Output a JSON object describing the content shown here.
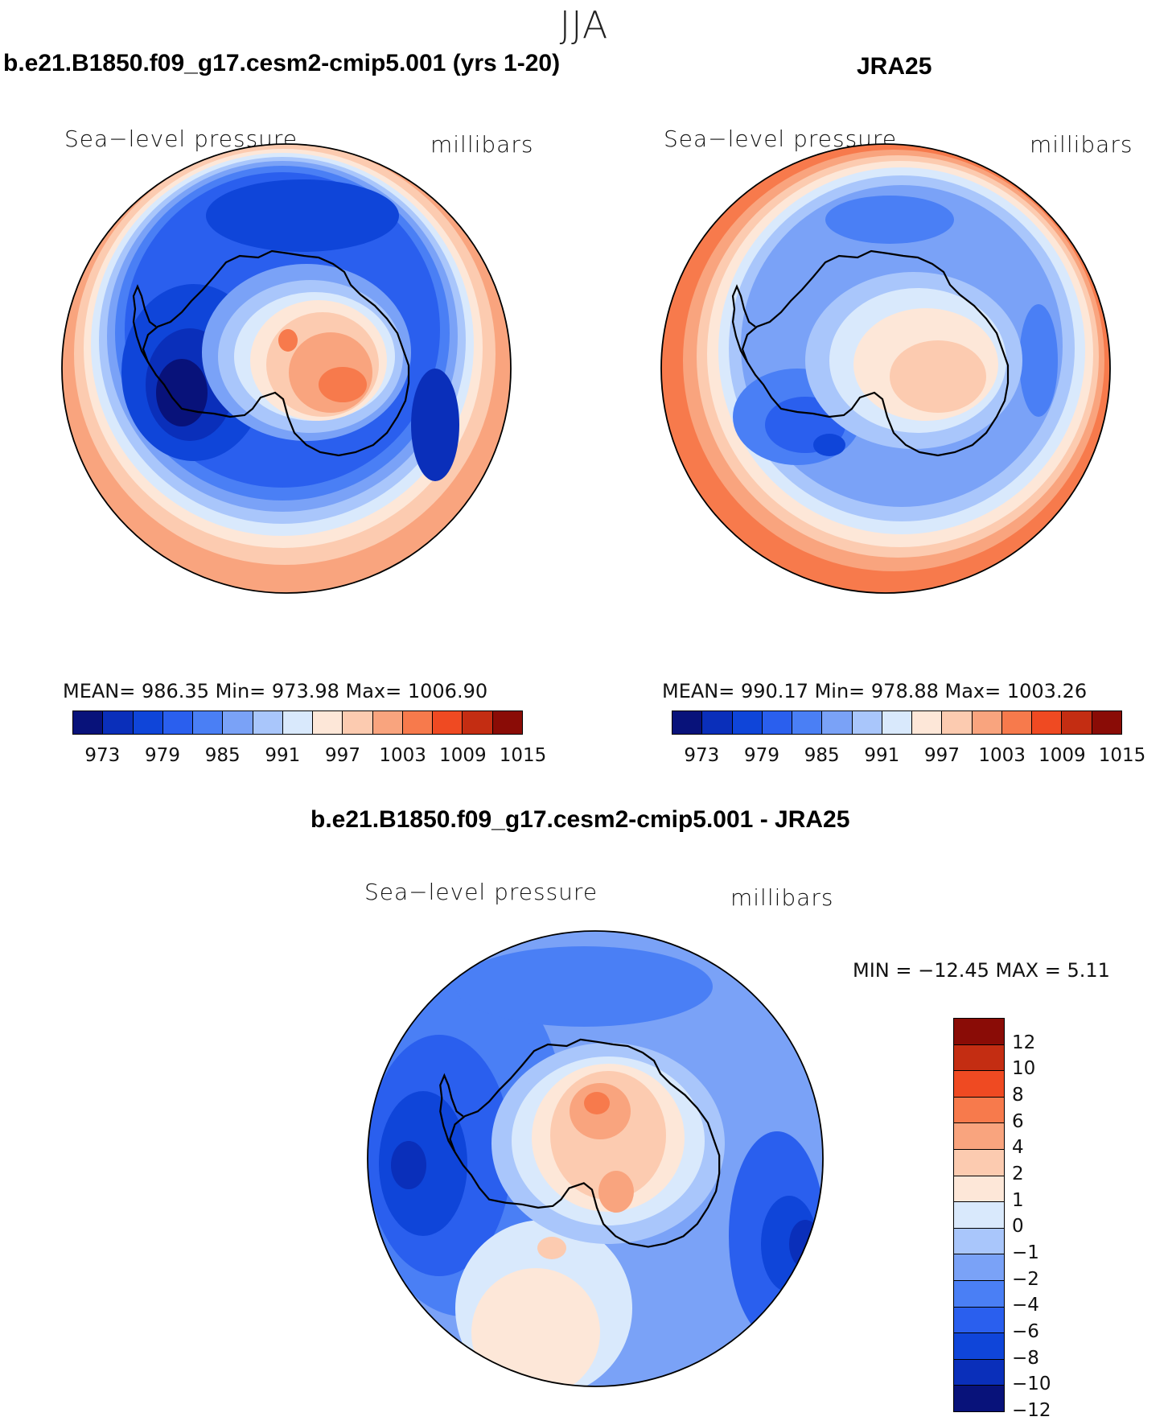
{
  "season": "JJA",
  "colors": {
    "abs_scale": [
      "#08127a",
      "#0a2fba",
      "#0f45d9",
      "#2a5fee",
      "#4a7ff5",
      "#7aa2f7",
      "#a9c6fb",
      "#d9e9fc",
      "#fde7d8",
      "#fccbb0",
      "#f9a47e",
      "#f77a4c",
      "#ef4a22",
      "#c42d12",
      "#8a0c06"
    ],
    "diff_scale": [
      "#08127a",
      "#0a2fba",
      "#0f45d9",
      "#2a5fee",
      "#4a7ff5",
      "#7aa2f7",
      "#a9c6fb",
      "#d9e9fc",
      "#fde7d8",
      "#fccbb0",
      "#f9a47e",
      "#f77a4c",
      "#ef4a22",
      "#c42d12",
      "#8a0c06"
    ]
  },
  "panels": {
    "model": {
      "title": "b.e21.B1850.f09_g17.cesm2-cmip5.001 (yrs 1-20)",
      "field": "Sea−level pressure",
      "units": "millibars",
      "stats": "MEAN=  986.35    Min=  973.98    Max=  1006.90",
      "mean": 986.35,
      "min": 973.98,
      "max": 1006.9
    },
    "obs": {
      "title": "JRA25",
      "field": "Sea−level pressure",
      "units": "millibars",
      "stats": "MEAN=  990.17    Min=  978.88    Max=  1003.26",
      "mean": 990.17,
      "min": 978.88,
      "max": 1003.26
    },
    "diff": {
      "title": "b.e21.B1850.f09_g17.cesm2-cmip5.001 - JRA25",
      "field": "Sea−level pressure",
      "units": "millibars",
      "stats": "MIN  =  −12.45  MAX  =     5.11",
      "min": -12.45,
      "max": 5.11
    }
  },
  "abs_colorbar_labels": [
    "973",
    "979",
    "985",
    "991",
    "997",
    "1003",
    "1009",
    "1015"
  ],
  "diff_colorbar_labels": [
    "12",
    "10",
    "8",
    "6",
    "4",
    "2",
    "1",
    "0",
    "−1",
    "−2",
    "−4",
    "−6",
    "−8",
    "−10",
    "−12"
  ]
}
